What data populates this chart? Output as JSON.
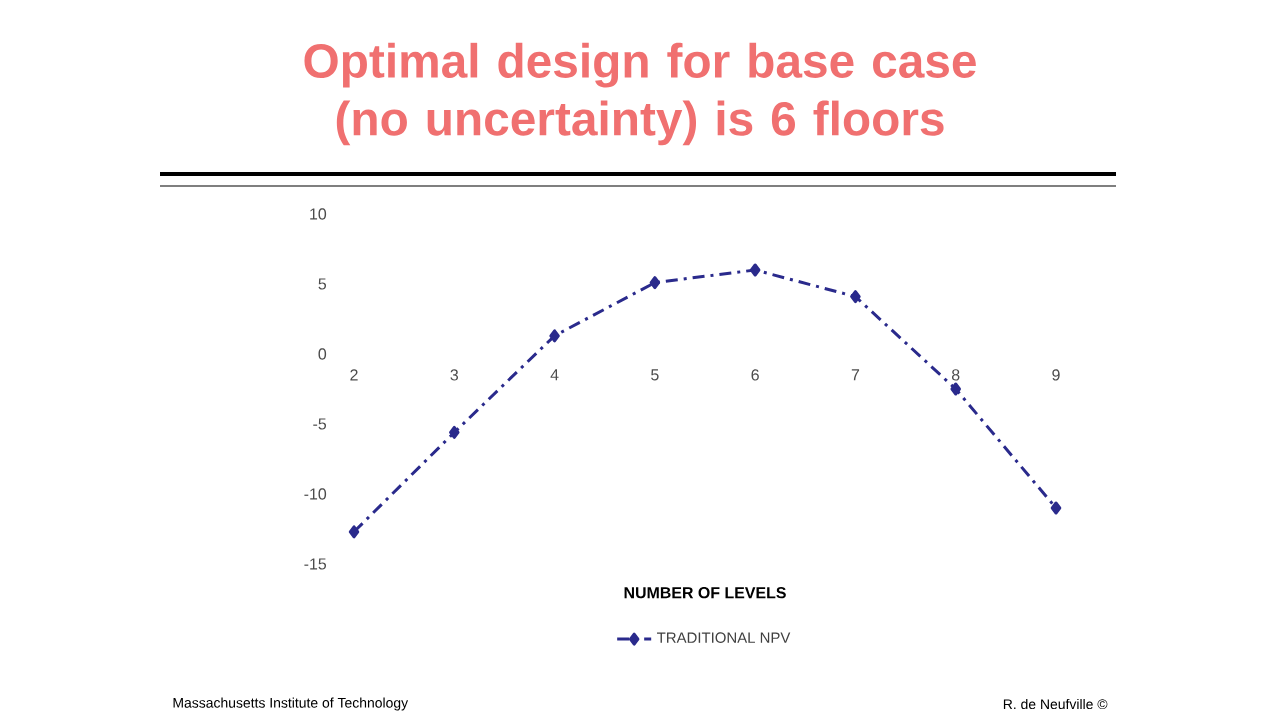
{
  "chart_data": {
    "type": "line",
    "title": "Optimal design for base case (no uncertainty) is 6 floors",
    "xlabel": "NUMBER OF LEVELS",
    "x": [
      2,
      3,
      4,
      5,
      6,
      7,
      8,
      9
    ],
    "series": [
      {
        "name": "TRADITIONAL NPV",
        "color": "#2a2a8c",
        "values": [
          -12.7,
          -5.6,
          1.3,
          5.1,
          6.0,
          4.1,
          -2.5,
          -11.0
        ]
      }
    ],
    "xlim": [
      2,
      9
    ],
    "xticks": [
      2,
      3,
      4,
      5,
      6,
      7,
      8,
      9
    ],
    "ylim": [
      -15,
      10
    ],
    "yticks": [
      -15,
      -10,
      -5,
      0,
      5,
      10
    ],
    "grid": false,
    "legend": "bottom",
    "marker": "diamond",
    "line_style": "dashdot",
    "annotations": [
      "Massachusetts Institute of Technology",
      "R. de Neufville ©"
    ]
  }
}
